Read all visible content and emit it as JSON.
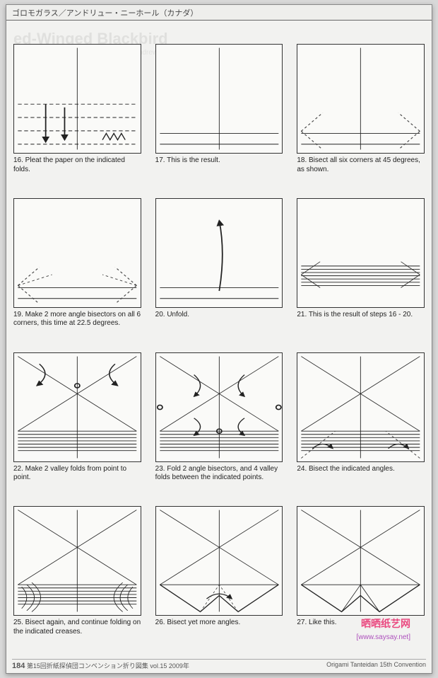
{
  "header": "ゴロモガラス／アンドリュー・ニーホール（カナダ）",
  "faint_title": "ed-Winged Blackbird",
  "faint_sub": "Designed 2008. Diagrammed 2008. © Andrew Neehar",
  "steps": [
    {
      "num": "16",
      "text": "Pleat the paper on the indicated folds.",
      "kind": "pleat"
    },
    {
      "num": "17",
      "text": "This is the result.",
      "kind": "result1"
    },
    {
      "num": "18",
      "text": "Bisect all six corners at 45 degrees, as shown.",
      "kind": "bisect45"
    },
    {
      "num": "19",
      "text": "Make 2 more angle bisectors on all 6 corners, this time at 22.5 degrees.",
      "kind": "bisect225"
    },
    {
      "num": "20",
      "text": "Unfold.",
      "kind": "unfold"
    },
    {
      "num": "21",
      "text": "This is the result of steps 16 - 20.",
      "kind": "result2"
    },
    {
      "num": "22",
      "text": "Make 2 valley folds from point to point.",
      "kind": "valley2"
    },
    {
      "num": "23",
      "text": "Fold 2 angle bisectors, and 4 valley folds between the indicated points.",
      "kind": "fold6"
    },
    {
      "num": "24",
      "text": "Bisect the indicated angles.",
      "kind": "bisect-ind"
    },
    {
      "num": "25",
      "text": "Bisect again, and continue folding on the indicated creases.",
      "kind": "bisect-again"
    },
    {
      "num": "26",
      "text": "Bisect yet more angles.",
      "kind": "bisect-more"
    },
    {
      "num": "27",
      "text": "Like this.",
      "kind": "like-this"
    }
  ],
  "colors": {
    "stroke": "#222222",
    "dash": "#444444",
    "paper": "#fafaf8",
    "arrow": "#222222"
  },
  "footer": {
    "page": "184",
    "left": "第15回折紙探偵団コンベンション折り図集 vol.15 2009年",
    "right": "Origami Tanteidan 15th Convention"
  },
  "watermark": "晒晒纸艺网",
  "watermark_sub": "[www.saysay.net]"
}
